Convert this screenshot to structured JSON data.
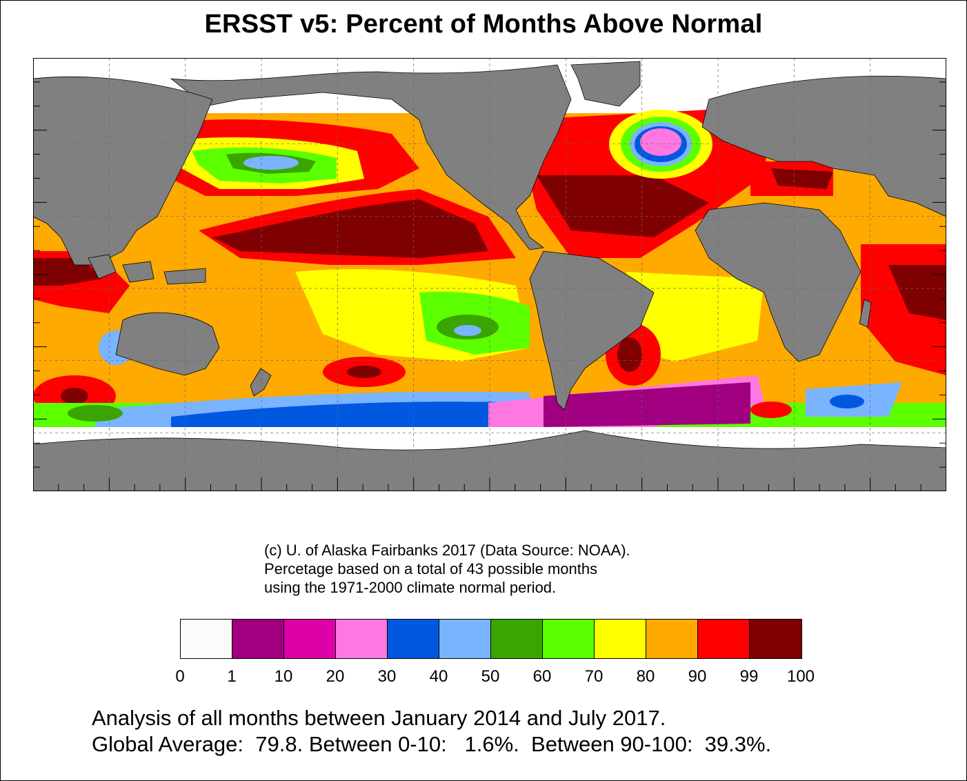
{
  "title": "ERSST v5: Percent of Months Above Normal",
  "credit_lines": [
    "(c) U. of Alaska Fairbanks 2017 (Data Source: NOAA).",
    "Percetage based on a total of 43 possible months",
    "using the 1971-2000 climate normal period."
  ],
  "legend": {
    "ticks": [
      "0",
      "1",
      "10",
      "20",
      "30",
      "40",
      "50",
      "60",
      "70",
      "80",
      "90",
      "99",
      "100"
    ],
    "colors": [
      "#fbfbfb",
      "#a0007f",
      "#df00a8",
      "#ff77e0",
      "#0058e0",
      "#7ab4ff",
      "#3aa400",
      "#5cff00",
      "#ffff00",
      "#ffaa00",
      "#ff0000",
      "#7f0000"
    ]
  },
  "land_color": "#808080",
  "no_data_color": "#ffffff",
  "summary_lines": [
    "Analysis of all months between January 2014 and July 2017.",
    "Global Average:  79.8. Between 0-10:   1.6%.  Between 90-100:  39.3%."
  ]
}
